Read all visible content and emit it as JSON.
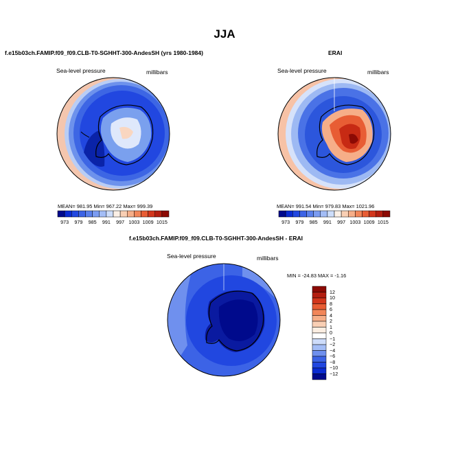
{
  "title": "JJA",
  "panels": [
    {
      "title": "f.e15b03ch.FAMIP.f09_f09.CLB-T0-SGHHT-300-AndesSH (yrs 1980-1984)",
      "left_label": "Sea-level pressure",
      "right_label": "millibars",
      "stats": "MEAN= 981.95   Min= 967.22   Max= 999.39",
      "colors": {
        "ocean_outer": "#f4c6ae",
        "deep": "#1a37c9",
        "mid": "#2f5ce0",
        "light": "#7aa0ee",
        "pale": "#e9eefb"
      }
    },
    {
      "title": "ERAI",
      "left_label": "Sea-level pressure",
      "right_label": "millibars",
      "stats": "MEAN= 991.54   Min= 979.83   Max= 1021.96",
      "colors": {
        "ocean_outer": "#f7c2a6",
        "deep": "#2c56dc",
        "mid": "#8ab0f0",
        "light": "#c9d9f8",
        "high": "#d93a1f"
      }
    },
    {
      "title": "f.e15b03ch.FAMIP.f09_f09.CLB-T0-SGHHT-300-AndesSH - ERAI",
      "left_label": "Sea-level pressure",
      "right_label": "millibars",
      "stats": "MIN = -24.83 MAX =   -1.16"
    }
  ],
  "top_colorbar": {
    "colors": [
      "#000a8c",
      "#0a2bd1",
      "#2147e0",
      "#3c63e6",
      "#5a80ec",
      "#7b9cf1",
      "#a3bdf6",
      "#cdddfa",
      "#fbf0e6",
      "#f9cfb4",
      "#f6ae88",
      "#f28659",
      "#e85d34",
      "#d2361c",
      "#b31e10",
      "#8c0a04"
    ],
    "labels": [
      "973",
      "979",
      "985",
      "991",
      "997",
      "1003",
      "1009",
      "1015"
    ]
  },
  "diff_colorbar": {
    "colors": [
      "#8c0a04",
      "#b31e10",
      "#d2361c",
      "#e85d34",
      "#f28659",
      "#f6ae88",
      "#f9cfb4",
      "#fbeee2",
      "#ffffff",
      "#cddcfa",
      "#a3bdf6",
      "#6f90ee",
      "#3c63e6",
      "#2147e0",
      "#0a2bd1",
      "#000a8c"
    ],
    "labels": [
      "12",
      "10",
      "8",
      "6",
      "4",
      "2",
      "1",
      "0",
      "−1",
      "−2",
      "−4",
      "−6",
      "−8",
      "−10",
      "−12"
    ]
  }
}
